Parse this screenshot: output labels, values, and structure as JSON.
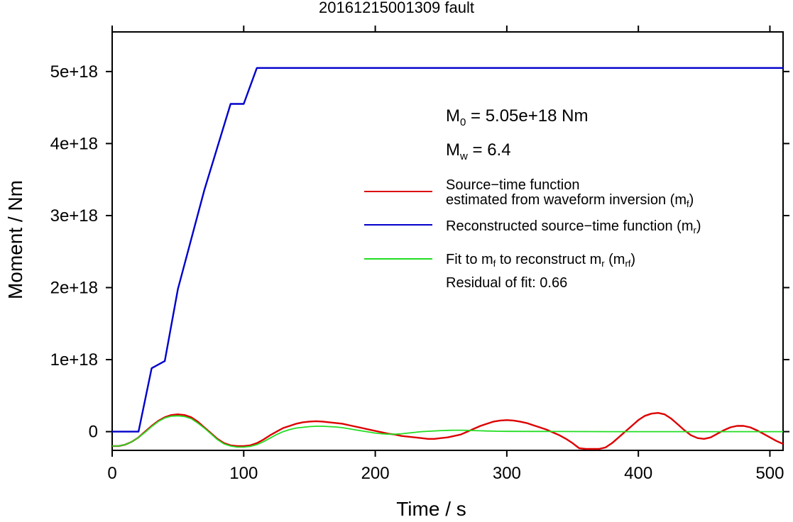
{
  "chart_data": {
    "type": "line",
    "title": "20161215001309 fault",
    "xlabel": "Time / s",
    "ylabel": "Moment / Nm",
    "xlim": [
      0,
      510
    ],
    "ylim": [
      -2.6e+17,
      5.55e+18
    ],
    "x_ticks": [
      0,
      100,
      200,
      300,
      400,
      500
    ],
    "x_tick_labels": [
      "0",
      "100",
      "200",
      "300",
      "400",
      "500"
    ],
    "y_ticks": [
      0,
      1e+18,
      2e+18,
      3e+18,
      4e+18,
      5e+18
    ],
    "y_tick_labels": [
      "0",
      "1e+18",
      "2e+18",
      "3e+18",
      "4e+18",
      "5e+18"
    ],
    "grid": false,
    "annotations": {
      "m0_prefix": "M",
      "m0_sub": "0",
      "m0_text": " = 5.05e+18 Nm",
      "mw_prefix": "M",
      "mw_sub": "w",
      "mw_text": " = 6.4",
      "residual": "Residual of fit: 0.66"
    },
    "legend": {
      "placement": "right",
      "entry1_line1": "Source−time function",
      "entry1_line2": "estimated from waveform inversion (m",
      "entry1_sub": "f",
      "entry1_close": ")",
      "entry2_text": "Reconstructed source−time function (m",
      "entry2_sub": "r",
      "entry2_close": ")",
      "entry3_a": "Fit to m",
      "entry3_a_sub": "f",
      "entry3_b": " to reconstruct m",
      "entry3_b_sub": "r",
      "entry3_c": " (m",
      "entry3_c_sub": "rf",
      "entry3_d": ")"
    },
    "series": [
      {
        "color": "#dd0000",
        "x": [
          0,
          5,
          10,
          15,
          20,
          25,
          30,
          35,
          40,
          45,
          50,
          55,
          60,
          65,
          70,
          75,
          80,
          85,
          90,
          95,
          100,
          105,
          110,
          115,
          120,
          125,
          130,
          135,
          140,
          145,
          150,
          155,
          160,
          165,
          170,
          175,
          180,
          185,
          190,
          195,
          200,
          205,
          210,
          215,
          220,
          225,
          230,
          235,
          240,
          245,
          250,
          255,
          260,
          265,
          270,
          275,
          280,
          285,
          290,
          295,
          300,
          305,
          310,
          315,
          320,
          325,
          330,
          335,
          340,
          345,
          350,
          355,
          360,
          365,
          370,
          375,
          380,
          385,
          390,
          395,
          400,
          405,
          410,
          415,
          420,
          425,
          430,
          435,
          440,
          445,
          450,
          455,
          460,
          465,
          470,
          475,
          480,
          485,
          490,
          495,
          500,
          505,
          510
        ],
        "y": [
          -2e+17,
          -2e+17,
          -1.8e+17,
          -1.4e+17,
          -8e+16,
          0,
          8e+16,
          1.5e+17,
          2e+17,
          2.3e+17,
          2.4e+17,
          2.3e+17,
          2e+17,
          1.4e+17,
          6e+16,
          -2e+16,
          -1e+17,
          -1.6e+17,
          -1.9e+17,
          -2e+17,
          -2e+17,
          -1.9e+17,
          -1.6e+17,
          -1.1e+17,
          -5e+16,
          0,
          5e+16,
          8e+16,
          1.1e+17,
          1.3e+17,
          1.4e+17,
          1.45e+17,
          1.4e+17,
          1.3e+17,
          1.2e+17,
          1.1e+17,
          9e+16,
          7e+16,
          5e+16,
          3e+16,
          1e+16,
          -1e+16,
          -3e+16,
          -4e+16,
          -6e+16,
          -7e+16,
          -8e+16,
          -9e+16,
          -1e+17,
          -1e+17,
          -9e+16,
          -8e+16,
          -6e+16,
          -4e+16,
          0,
          4e+16,
          8e+16,
          1.1e+17,
          1.4e+17,
          1.55e+17,
          1.6e+17,
          1.55e+17,
          1.4e+17,
          1.2e+17,
          9e+16,
          6e+16,
          3e+16,
          -1e+16,
          -5e+16,
          -1e+17,
          -1.6e+17,
          -2.3e+17,
          -2.4e+17,
          -2.4e+17,
          -2.4e+17,
          -2.2e+17,
          -1.6e+17,
          -8e+16,
          0,
          8e+16,
          1.6e+17,
          2.2e+17,
          2.5e+17,
          2.6e+17,
          2.4e+17,
          1.8e+17,
          1e+17,
          2e+16,
          -5e+16,
          -9e+16,
          -1e+17,
          -8e+16,
          -3e+16,
          2e+16,
          6e+16,
          8e+16,
          8e+16,
          6e+16,
          2e+16,
          -3e+16,
          -8e+16,
          -1.3e+17,
          -1.7e+17
        ]
      },
      {
        "color": "#0000cc",
        "x": [
          0,
          20,
          30,
          40,
          50,
          70,
          90,
          100,
          110,
          510
        ],
        "y": [
          0,
          0,
          8.8e+17,
          9.8e+17,
          1.98e+18,
          3.35e+18,
          4.55e+18,
          4.55e+18,
          5.05e+18,
          5.05e+18
        ]
      },
      {
        "color": "#22dd22",
        "x": [
          0,
          5,
          10,
          15,
          20,
          25,
          30,
          35,
          40,
          45,
          50,
          55,
          60,
          65,
          70,
          75,
          80,
          85,
          90,
          95,
          100,
          105,
          110,
          115,
          120,
          125,
          130,
          135,
          140,
          145,
          150,
          155,
          160,
          165,
          170,
          175,
          180,
          185,
          190,
          195,
          200,
          205,
          210,
          215,
          220,
          225,
          230,
          235,
          240,
          245,
          250,
          255,
          260,
          265,
          270,
          275,
          280,
          285,
          290,
          295,
          300,
          320,
          340,
          360,
          380,
          400,
          420,
          440,
          460,
          480,
          500,
          510
        ],
        "y": [
          -2e+17,
          -2e+17,
          -1.8e+17,
          -1.4e+17,
          -8e+16,
          -1e+16,
          7e+16,
          1.4e+17,
          1.9e+17,
          2.15e+17,
          2.2e+17,
          2.1e+17,
          1.8e+17,
          1.2e+17,
          5e+16,
          -3e+16,
          -1.1e+17,
          -1.7e+17,
          -2e+17,
          -2.15e+17,
          -2.15e+17,
          -2.05e+17,
          -1.8e+17,
          -1.4e+17,
          -9e+16,
          -4e+16,
          0,
          3e+16,
          5e+16,
          6e+16,
          7e+16,
          7.5e+16,
          7.5e+16,
          7e+16,
          6.5e+16,
          5.5e+16,
          4e+16,
          2.5e+16,
          1e+16,
          -5000000000000000.0,
          -2e+16,
          -3e+16,
          -3.5e+16,
          -3.5e+16,
          -3e+16,
          -2e+16,
          -1e+16,
          0,
          5000000000000000.0,
          1e+16,
          1.5e+16,
          1.8e+16,
          2e+16,
          2e+16,
          1.8e+16,
          1.5e+16,
          1.2e+16,
          9000000000000000.0,
          7000000000000000.0,
          5000000000000000.0,
          4000000000000000.0,
          3000000000000000.0,
          2000000000000000.0,
          1000000000000000.0,
          0,
          0,
          0,
          0,
          0,
          0,
          0,
          0
        ]
      }
    ]
  }
}
